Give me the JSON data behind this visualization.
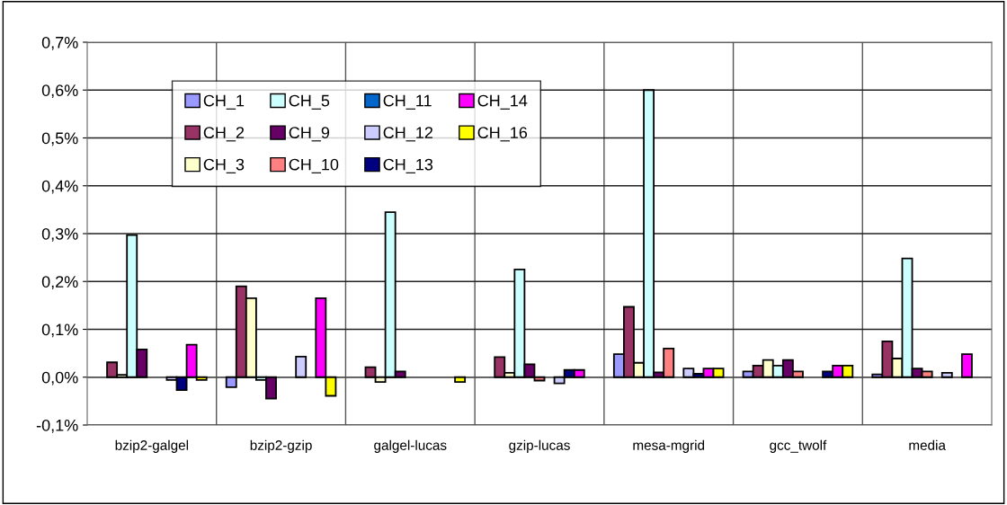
{
  "chart_data": {
    "type": "bar",
    "categories": [
      "bzip2-galgel",
      "bzip2-gzip",
      "galgel-lucas",
      "gzip-lucas",
      "mesa-mgrid",
      "gcc_twolf",
      "media"
    ],
    "series": [
      {
        "name": "CH_1",
        "color": "#9999ff",
        "values": [
          null,
          -0.021,
          null,
          null,
          0.048,
          0.012,
          0.006
        ]
      },
      {
        "name": "CH_2",
        "color": "#993366",
        "values": [
          0.031,
          0.19,
          0.021,
          0.042,
          0.147,
          0.024,
          0.075
        ]
      },
      {
        "name": "CH_3",
        "color": "#ffffcc",
        "values": [
          0.005,
          0.165,
          -0.01,
          0.009,
          0.03,
          0.036,
          0.039
        ]
      },
      {
        "name": "CH_5",
        "color": "#ccffff",
        "values": [
          0.297,
          -0.006,
          0.345,
          0.225,
          0.6,
          0.024,
          0.248
        ]
      },
      {
        "name": "CH_9",
        "color": "#660066",
        "values": [
          0.058,
          -0.045,
          0.012,
          0.027,
          0.01,
          0.036,
          0.018
        ]
      },
      {
        "name": "CH_10",
        "color": "#ff8080",
        "values": [
          null,
          null,
          null,
          -0.007,
          0.06,
          0.012,
          0.012
        ]
      },
      {
        "name": "CH_11",
        "color": "#0066cc",
        "values": [
          null,
          null,
          null,
          null,
          null,
          null,
          null
        ]
      },
      {
        "name": "CH_12",
        "color": "#ccccff",
        "values": [
          -0.006,
          0.043,
          null,
          -0.013,
          0.018,
          null,
          0.009
        ]
      },
      {
        "name": "CH_13",
        "color": "#000080",
        "values": [
          -0.027,
          null,
          null,
          0.015,
          0.007,
          0.012,
          null
        ]
      },
      {
        "name": "CH_14",
        "color": "#ff00ff",
        "values": [
          0.068,
          0.165,
          null,
          0.015,
          0.018,
          0.024,
          0.048
        ]
      },
      {
        "name": "CH_16",
        "color": "#ffff00",
        "values": [
          -0.006,
          -0.039,
          -0.01,
          null,
          0.018,
          0.024,
          null
        ]
      }
    ],
    "ylim": [
      -0.1,
      0.7
    ],
    "yticks": [
      {
        "value": -0.1,
        "label": "-0,1%"
      },
      {
        "value": 0.0,
        "label": "0,0%"
      },
      {
        "value": 0.1,
        "label": "0,1%"
      },
      {
        "value": 0.2,
        "label": "0,2%"
      },
      {
        "value": 0.3,
        "label": "0,3%"
      },
      {
        "value": 0.4,
        "label": "0,4%"
      },
      {
        "value": 0.5,
        "label": "0,5%"
      },
      {
        "value": 0.6,
        "label": "0,6%"
      },
      {
        "value": 0.7,
        "label": "0,7%"
      }
    ],
    "grid": true,
    "legend": "top left"
  }
}
